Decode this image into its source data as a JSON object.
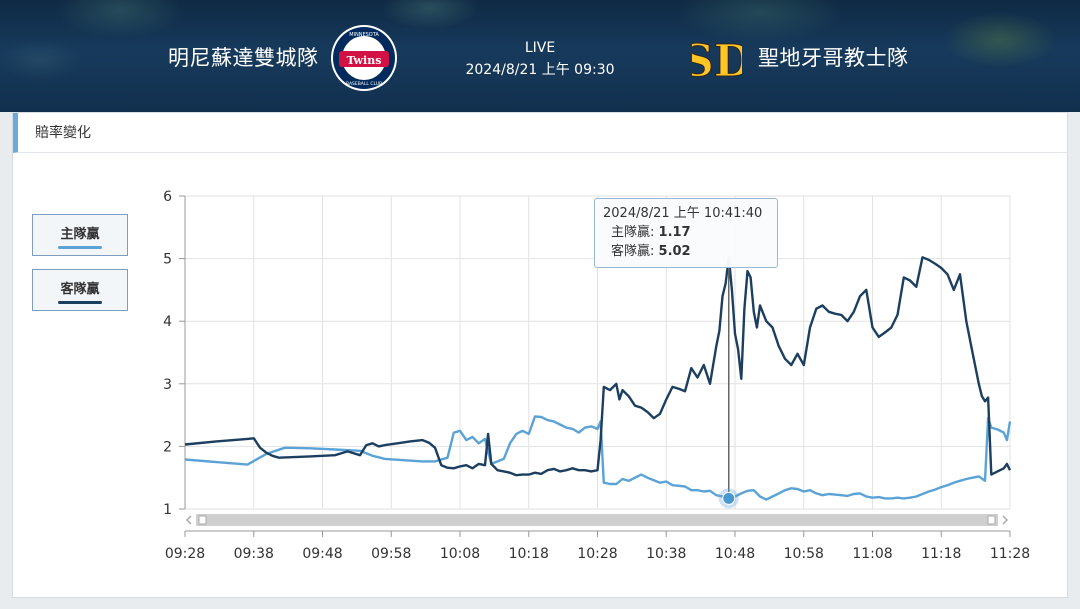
{
  "header": {
    "home_team": "明尼蘇達雙城隊",
    "away_team": "聖地牙哥教士隊",
    "status": "LIVE",
    "game_time": "2024/8/21 上午 09:30",
    "home_logo_icon": "twins-logo",
    "away_logo_icon": "padres-logo",
    "home_logo": {
      "top_text": "MINNESOTA",
      "wordmark": "Twins",
      "bottom_text": "BASEBALL CLUB"
    },
    "away_logo": {
      "monogram": "SD"
    }
  },
  "panel": {
    "title": "賠率變化"
  },
  "legend": [
    {
      "label": "主隊贏",
      "color": "#5ba3d6"
    },
    {
      "label": "客隊贏",
      "color": "#1c3f60"
    }
  ],
  "tooltip": {
    "time": "2024/8/21 上午 10:41:40",
    "home_label": "主隊贏:",
    "home_value": "1.17",
    "away_label": "客隊贏:",
    "away_value": "5.02"
  },
  "chart_data": {
    "type": "line",
    "x_ticks": [
      "09:28",
      "09:38",
      "09:48",
      "09:58",
      "10:08",
      "10:18",
      "10:28",
      "10:38",
      "10:48",
      "10:58",
      "11:08",
      "11:18",
      "11:28"
    ],
    "ylim": [
      1,
      6
    ],
    "y_ticks": [
      1,
      2,
      3,
      4,
      5,
      6
    ],
    "grid": true,
    "series": [
      {
        "name": "主隊贏",
        "color": "#5ba3d6",
        "points": [
          [
            0,
            1.79
          ],
          [
            5,
            1.75
          ],
          [
            10,
            1.71
          ],
          [
            13,
            1.88
          ],
          [
            16,
            1.98
          ],
          [
            20,
            1.97
          ],
          [
            24,
            1.95
          ],
          [
            28,
            1.93
          ],
          [
            30,
            1.85
          ],
          [
            32,
            1.8
          ],
          [
            35,
            1.78
          ],
          [
            38,
            1.76
          ],
          [
            40,
            1.76
          ],
          [
            42,
            1.82
          ],
          [
            43,
            2.22
          ],
          [
            44,
            2.25
          ],
          [
            45,
            2.1
          ],
          [
            46,
            2.15
          ],
          [
            47,
            2.05
          ],
          [
            48,
            2.12
          ],
          [
            49,
            1.72
          ],
          [
            50,
            1.76
          ],
          [
            51,
            1.8
          ],
          [
            52,
            2.05
          ],
          [
            53,
            2.2
          ],
          [
            54,
            2.25
          ],
          [
            55,
            2.2
          ],
          [
            56,
            2.48
          ],
          [
            57,
            2.47
          ],
          [
            58,
            2.42
          ],
          [
            59,
            2.4
          ],
          [
            60,
            2.35
          ],
          [
            61,
            2.3
          ],
          [
            62,
            2.28
          ],
          [
            63,
            2.22
          ],
          [
            64,
            2.3
          ],
          [
            65,
            2.32
          ],
          [
            66,
            2.28
          ],
          [
            66.5,
            2.4
          ],
          [
            67,
            1.42
          ],
          [
            68,
            1.4
          ],
          [
            69,
            1.4
          ],
          [
            70,
            1.48
          ],
          [
            71,
            1.45
          ],
          [
            72,
            1.5
          ],
          [
            73,
            1.55
          ],
          [
            74,
            1.5
          ],
          [
            75,
            1.46
          ],
          [
            76,
            1.42
          ],
          [
            77,
            1.44
          ],
          [
            78,
            1.38
          ],
          [
            79,
            1.37
          ],
          [
            80,
            1.36
          ],
          [
            81,
            1.3
          ],
          [
            82,
            1.3
          ],
          [
            83,
            1.28
          ],
          [
            84,
            1.29
          ],
          [
            85,
            1.22
          ],
          [
            86,
            1.2
          ],
          [
            87,
            1.17
          ],
          [
            88,
            1.2
          ],
          [
            89,
            1.25
          ],
          [
            90,
            1.29
          ],
          [
            91,
            1.3
          ],
          [
            92,
            1.2
          ],
          [
            93,
            1.15
          ],
          [
            94,
            1.2
          ],
          [
            95,
            1.25
          ],
          [
            96,
            1.3
          ],
          [
            97,
            1.33
          ],
          [
            98,
            1.32
          ],
          [
            99,
            1.28
          ],
          [
            100,
            1.3
          ],
          [
            101,
            1.25
          ],
          [
            102,
            1.22
          ],
          [
            103,
            1.24
          ],
          [
            104,
            1.23
          ],
          [
            105,
            1.22
          ],
          [
            106,
            1.21
          ],
          [
            107,
            1.24
          ],
          [
            108,
            1.25
          ],
          [
            109,
            1.2
          ],
          [
            110,
            1.18
          ],
          [
            111,
            1.19
          ],
          [
            112,
            1.17
          ],
          [
            113,
            1.17
          ],
          [
            114,
            1.18
          ],
          [
            115,
            1.17
          ],
          [
            116,
            1.18
          ],
          [
            117,
            1.2
          ],
          [
            118,
            1.24
          ],
          [
            119,
            1.28
          ],
          [
            120,
            1.31
          ],
          [
            121,
            1.35
          ],
          [
            122,
            1.38
          ],
          [
            123,
            1.42
          ],
          [
            124,
            1.45
          ],
          [
            125,
            1.48
          ],
          [
            126,
            1.5
          ],
          [
            127,
            1.52
          ],
          [
            128,
            1.45
          ],
          [
            128.5,
            2.45
          ],
          [
            129,
            2.3
          ],
          [
            130,
            2.27
          ],
          [
            131,
            2.22
          ],
          [
            131.5,
            2.1
          ],
          [
            132,
            2.4
          ]
        ]
      },
      {
        "name": "客隊贏",
        "color": "#1c3f60",
        "points": [
          [
            0,
            2.03
          ],
          [
            5,
            2.08
          ],
          [
            10,
            2.12
          ],
          [
            11,
            2.13
          ],
          [
            12,
            1.98
          ],
          [
            13,
            1.9
          ],
          [
            14,
            1.85
          ],
          [
            15,
            1.82
          ],
          [
            20,
            1.84
          ],
          [
            24,
            1.86
          ],
          [
            26,
            1.92
          ],
          [
            28,
            1.86
          ],
          [
            29,
            2.02
          ],
          [
            30,
            2.05
          ],
          [
            31,
            2.0
          ],
          [
            32,
            2.02
          ],
          [
            34,
            2.05
          ],
          [
            36,
            2.08
          ],
          [
            38,
            2.1
          ],
          [
            39,
            2.06
          ],
          [
            40,
            1.98
          ],
          [
            41,
            1.7
          ],
          [
            42,
            1.66
          ],
          [
            43,
            1.65
          ],
          [
            44,
            1.68
          ],
          [
            45,
            1.7
          ],
          [
            46,
            1.65
          ],
          [
            47,
            1.72
          ],
          [
            48,
            1.7
          ],
          [
            48.5,
            2.2
          ],
          [
            49,
            1.72
          ],
          [
            50,
            1.62
          ],
          [
            51,
            1.6
          ],
          [
            52,
            1.58
          ],
          [
            53,
            1.54
          ],
          [
            54,
            1.55
          ],
          [
            55,
            1.55
          ],
          [
            56,
            1.58
          ],
          [
            57,
            1.56
          ],
          [
            58,
            1.62
          ],
          [
            59,
            1.64
          ],
          [
            60,
            1.6
          ],
          [
            61,
            1.62
          ],
          [
            62,
            1.65
          ],
          [
            63,
            1.62
          ],
          [
            64,
            1.62
          ],
          [
            65,
            1.6
          ],
          [
            66,
            1.62
          ],
          [
            66.5,
            2.1
          ],
          [
            67,
            2.95
          ],
          [
            68,
            2.9
          ],
          [
            69,
            3.0
          ],
          [
            69.5,
            2.75
          ],
          [
            70,
            2.9
          ],
          [
            71,
            2.8
          ],
          [
            72,
            2.65
          ],
          [
            73,
            2.62
          ],
          [
            74,
            2.55
          ],
          [
            75,
            2.45
          ],
          [
            76,
            2.52
          ],
          [
            77,
            2.75
          ],
          [
            78,
            2.95
          ],
          [
            79,
            2.92
          ],
          [
            80,
            2.88
          ],
          [
            81,
            3.25
          ],
          [
            82,
            3.1
          ],
          [
            82.5,
            3.2
          ],
          [
            83,
            3.3
          ],
          [
            84,
            3.0
          ],
          [
            85,
            3.6
          ],
          [
            85.5,
            3.85
          ],
          [
            86,
            4.4
          ],
          [
            86.5,
            4.6
          ],
          [
            87,
            5.02
          ],
          [
            87.5,
            4.5
          ],
          [
            88,
            3.8
          ],
          [
            88.5,
            3.55
          ],
          [
            89,
            3.08
          ],
          [
            89.5,
            4.2
          ],
          [
            90,
            4.8
          ],
          [
            90.5,
            4.7
          ],
          [
            91,
            4.15
          ],
          [
            91.5,
            3.9
          ],
          [
            92,
            4.25
          ],
          [
            93,
            4.0
          ],
          [
            94,
            3.9
          ],
          [
            95,
            3.6
          ],
          [
            96,
            3.4
          ],
          [
            97,
            3.3
          ],
          [
            98,
            3.48
          ],
          [
            99,
            3.3
          ],
          [
            100,
            3.9
          ],
          [
            101,
            4.2
          ],
          [
            102,
            4.25
          ],
          [
            103,
            4.15
          ],
          [
            104,
            4.12
          ],
          [
            105,
            4.1
          ],
          [
            106,
            4.0
          ],
          [
            107,
            4.15
          ],
          [
            108,
            4.4
          ],
          [
            109,
            4.5
          ],
          [
            110,
            3.9
          ],
          [
            111,
            3.75
          ],
          [
            112,
            3.82
          ],
          [
            113,
            3.9
          ],
          [
            114,
            4.1
          ],
          [
            115,
            4.7
          ],
          [
            116,
            4.65
          ],
          [
            117,
            4.55
          ],
          [
            118,
            5.02
          ],
          [
            119,
            4.98
          ],
          [
            120,
            4.92
          ],
          [
            121,
            4.85
          ],
          [
            122,
            4.75
          ],
          [
            123,
            4.5
          ],
          [
            124,
            4.75
          ],
          [
            125,
            4.0
          ],
          [
            126,
            3.5
          ],
          [
            127,
            3.0
          ],
          [
            127.5,
            2.8
          ],
          [
            128,
            2.72
          ],
          [
            128.5,
            2.78
          ],
          [
            129,
            1.55
          ],
          [
            130,
            1.6
          ],
          [
            131,
            1.65
          ],
          [
            131.5,
            1.72
          ],
          [
            132,
            1.62
          ]
        ]
      }
    ],
    "hover": {
      "x": 87,
      "value": 1.17
    }
  }
}
